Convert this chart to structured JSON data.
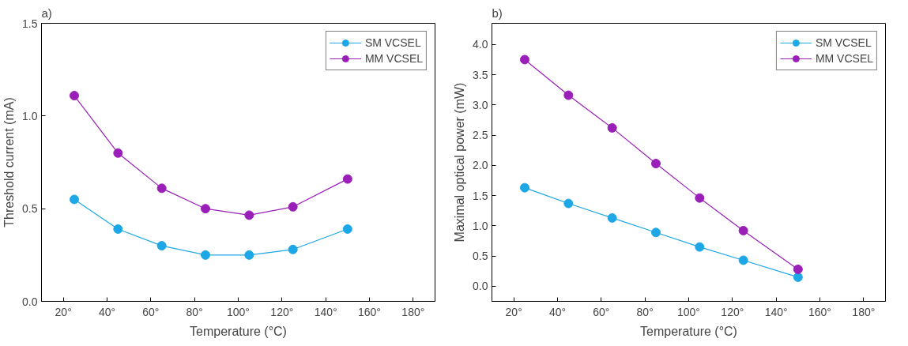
{
  "chart_data": [
    {
      "type": "line",
      "title": "a)",
      "xlabel": "Temperature (°C)",
      "ylabel": "Threshold current (mA)",
      "x": [
        25,
        45,
        65,
        85,
        105,
        125,
        150
      ],
      "series": [
        {
          "name": "SM VCSEL",
          "color": "#1ea7e6",
          "values": [
            0.55,
            0.39,
            0.3,
            0.25,
            0.25,
            0.28,
            0.39
          ]
        },
        {
          "name": "MM VCSEL",
          "color": "#9a1fb8",
          "values": [
            1.11,
            0.8,
            0.61,
            0.5,
            0.465,
            0.51,
            0.66
          ]
        }
      ],
      "xlim": [
        10,
        190
      ],
      "xticks": [
        {
          "value": 20,
          "label": "20°"
        },
        {
          "value": 40,
          "label": "40°"
        },
        {
          "value": 60,
          "label": "60°"
        },
        {
          "value": 80,
          "label": "80°"
        },
        {
          "value": 100,
          "label": "100°"
        },
        {
          "value": 120,
          "label": "120°"
        },
        {
          "value": 140,
          "label": "140°"
        },
        {
          "value": 160,
          "label": "160°"
        },
        {
          "value": 180,
          "label": "180°"
        }
      ],
      "ylim": [
        0,
        1.5
      ],
      "yticks": [
        {
          "value": 0,
          "label": "0.0"
        },
        {
          "value": 0.5,
          "label": "0.5"
        },
        {
          "value": 1,
          "label": "1.0"
        },
        {
          "value": 1.5,
          "label": "1.5"
        }
      ],
      "grid": false,
      "legend": "top right",
      "marker": "circle",
      "line_style": "solid"
    },
    {
      "type": "line",
      "title": "b)",
      "xlabel": "Temperature (°C)",
      "ylabel": "Maximal optical power (mW)",
      "x": [
        25,
        45,
        65,
        85,
        105,
        125,
        150
      ],
      "series": [
        {
          "name": "SM VCSEL",
          "color": "#1ea7e6",
          "values": [
            1.63,
            1.37,
            1.13,
            0.89,
            0.65,
            0.43,
            0.15
          ]
        },
        {
          "name": "MM VCSEL",
          "color": "#9a1fb8",
          "values": [
            3.75,
            3.16,
            2.62,
            2.03,
            1.46,
            0.92,
            0.28
          ]
        }
      ],
      "xlim": [
        10,
        190
      ],
      "xticks": [
        {
          "value": 20,
          "label": "20°"
        },
        {
          "value": 40,
          "label": "40°"
        },
        {
          "value": 60,
          "label": "60°"
        },
        {
          "value": 80,
          "label": "80°"
        },
        {
          "value": 100,
          "label": "100°"
        },
        {
          "value": 120,
          "label": "120°"
        },
        {
          "value": 140,
          "label": "140°"
        },
        {
          "value": 160,
          "label": "160°"
        },
        {
          "value": 180,
          "label": "180°"
        }
      ],
      "ylim": [
        -0.25,
        4.35
      ],
      "yticks": [
        {
          "value": 0,
          "label": "0.0"
        },
        {
          "value": 0.5,
          "label": "0.5"
        },
        {
          "value": 1,
          "label": "1.0"
        },
        {
          "value": 1.5,
          "label": "1.5"
        },
        {
          "value": 2,
          "label": "2.0"
        },
        {
          "value": 2.5,
          "label": "2.5"
        },
        {
          "value": 3,
          "label": "3.0"
        },
        {
          "value": 3.5,
          "label": "3.5"
        },
        {
          "value": 4,
          "label": "4.0"
        }
      ],
      "grid": false,
      "legend": "top right",
      "marker": "circle",
      "line_style": "solid"
    }
  ]
}
